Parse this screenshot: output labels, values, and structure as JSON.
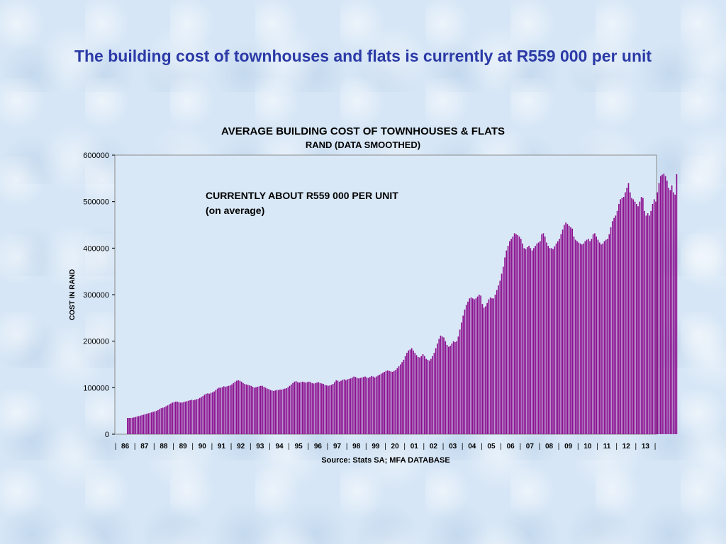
{
  "slide": {
    "title": "The building cost of townhouses and flats is currently at R559 000 per unit"
  },
  "colors": {
    "bar": "#8b0f8f",
    "bar_edge": "#5a005e",
    "title": "#2b3aa6",
    "plot_bg": "#d9e8f7"
  },
  "chart_data": {
    "type": "bar",
    "title": "AVERAGE BUILDING COST OF TOWNHOUSES & FLATS",
    "subtitle": "RAND (DATA SMOOTHED)",
    "ylabel": "COST IN RAND",
    "xlabel": "",
    "ylim": [
      0,
      600000
    ],
    "yticks": [
      "0",
      "100000",
      "200000",
      "300000",
      "400000",
      "500000",
      "600000"
    ],
    "year_labels": [
      "86",
      "87",
      "88",
      "89",
      "90",
      "91",
      "92",
      "93",
      "94",
      "95",
      "96",
      "97",
      "98",
      "99",
      "20",
      "01",
      "02",
      "03",
      "04",
      "05",
      "06",
      "07",
      "08",
      "09",
      "10",
      "11",
      "12",
      "13"
    ],
    "annotation": [
      "CURRENTLY ABOUT R559 000 PER UNIT",
      "(on average)"
    ],
    "source": "Source: Stats SA; MFA DATABASE",
    "grid": false,
    "series": [
      {
        "values_by_year": [
          [
            35000,
            35000,
            35000,
            35500,
            36000,
            37000,
            38000,
            39000,
            40000,
            41000,
            42000,
            43000
          ],
          [
            44000,
            45000,
            46000,
            47000,
            48000,
            49000,
            50000,
            52000,
            54000,
            56000,
            57000,
            58000
          ],
          [
            60000,
            62000,
            64000,
            66000,
            68000,
            69000,
            70000,
            70000,
            69000,
            68000,
            68000,
            69000
          ],
          [
            70000,
            71000,
            72000,
            73000,
            74000,
            73000,
            74000,
            75000,
            76000,
            78000,
            80000,
            82000
          ],
          [
            85000,
            87000,
            88000,
            87000,
            89000,
            90000,
            92000,
            95000,
            98000,
            100000,
            100000,
            101000
          ],
          [
            103000,
            102000,
            103000,
            104000,
            105000,
            107000,
            110000,
            113000,
            115000,
            116000,
            115000,
            113000
          ],
          [
            110000,
            108000,
            107000,
            106000,
            105000,
            104000,
            102000,
            100000,
            101000,
            102000,
            103000,
            104000
          ],
          [
            104000,
            102000,
            100000,
            98000,
            97000,
            95000,
            94000,
            93000,
            94000,
            95000,
            95000,
            96000
          ],
          [
            96000,
            97000,
            98000,
            99000,
            101000,
            104000,
            107000,
            110000,
            113000,
            114000,
            112000,
            111000
          ],
          [
            112000,
            113000,
            112000,
            111000,
            112000,
            113000,
            112000,
            110000,
            109000,
            110000,
            111000,
            112000
          ],
          [
            110000,
            109000,
            108000,
            106000,
            105000,
            104000,
            105000,
            106000,
            108000,
            112000,
            116000,
            115000
          ],
          [
            113000,
            115000,
            117000,
            118000,
            116000,
            118000,
            119000,
            120000,
            122000,
            124000,
            123000,
            121000
          ],
          [
            120000,
            121000,
            122000,
            123000,
            124000,
            122000,
            121000,
            123000,
            125000,
            124000,
            122000,
            124000
          ],
          [
            126000,
            128000,
            130000,
            132000,
            134000,
            136000,
            137000,
            136000,
            135000,
            134000,
            136000,
            138000
          ],
          [
            142000,
            146000,
            150000,
            155000,
            160000,
            168000,
            175000,
            180000,
            182000,
            185000,
            180000,
            175000
          ],
          [
            170000,
            166000,
            165000,
            168000,
            172000,
            168000,
            162000,
            160000,
            158000,
            162000,
            168000,
            175000
          ],
          [
            185000,
            195000,
            205000,
            212000,
            210000,
            208000,
            200000,
            192000,
            188000,
            190000,
            195000,
            200000
          ],
          [
            198000,
            200000,
            210000,
            225000,
            240000,
            255000,
            268000,
            278000,
            285000,
            292000,
            294000,
            292000
          ],
          [
            290000,
            292000,
            296000,
            300000,
            298000,
            280000,
            272000,
            275000,
            282000,
            290000,
            294000,
            292000
          ],
          [
            292000,
            300000,
            310000,
            320000,
            330000,
            345000,
            360000,
            380000,
            395000,
            405000,
            415000,
            420000
          ],
          [
            425000,
            432000,
            430000,
            428000,
            425000,
            420000,
            410000,
            400000,
            398000,
            402000,
            405000,
            400000
          ],
          [
            395000,
            400000,
            405000,
            410000,
            412000,
            415000,
            430000,
            432000,
            425000,
            412000,
            405000,
            400000
          ],
          [
            400000,
            398000,
            404000,
            410000,
            415000,
            420000,
            430000,
            440000,
            450000,
            455000,
            452000,
            448000
          ],
          [
            445000,
            442000,
            425000,
            418000,
            415000,
            412000,
            410000,
            408000,
            410000,
            415000,
            418000,
            420000
          ],
          [
            415000,
            420000,
            430000,
            432000,
            425000,
            418000,
            412000,
            408000,
            410000,
            415000,
            418000,
            420000
          ],
          [
            430000,
            445000,
            458000,
            465000,
            470000,
            480000,
            495000,
            505000,
            508000,
            510000,
            520000,
            530000
          ],
          [
            540000,
            520000,
            508000,
            505000,
            500000,
            495000,
            490000,
            500000,
            510000,
            508000,
            480000,
            470000
          ],
          [
            475000,
            470000,
            480000,
            495000,
            505000,
            500000,
            520000,
            540000,
            555000,
            558000,
            560000,
            555000
          ],
          [
            545000,
            530000,
            525000,
            535000,
            520000,
            515000,
            559000
          ]
        ]
      }
    ]
  }
}
